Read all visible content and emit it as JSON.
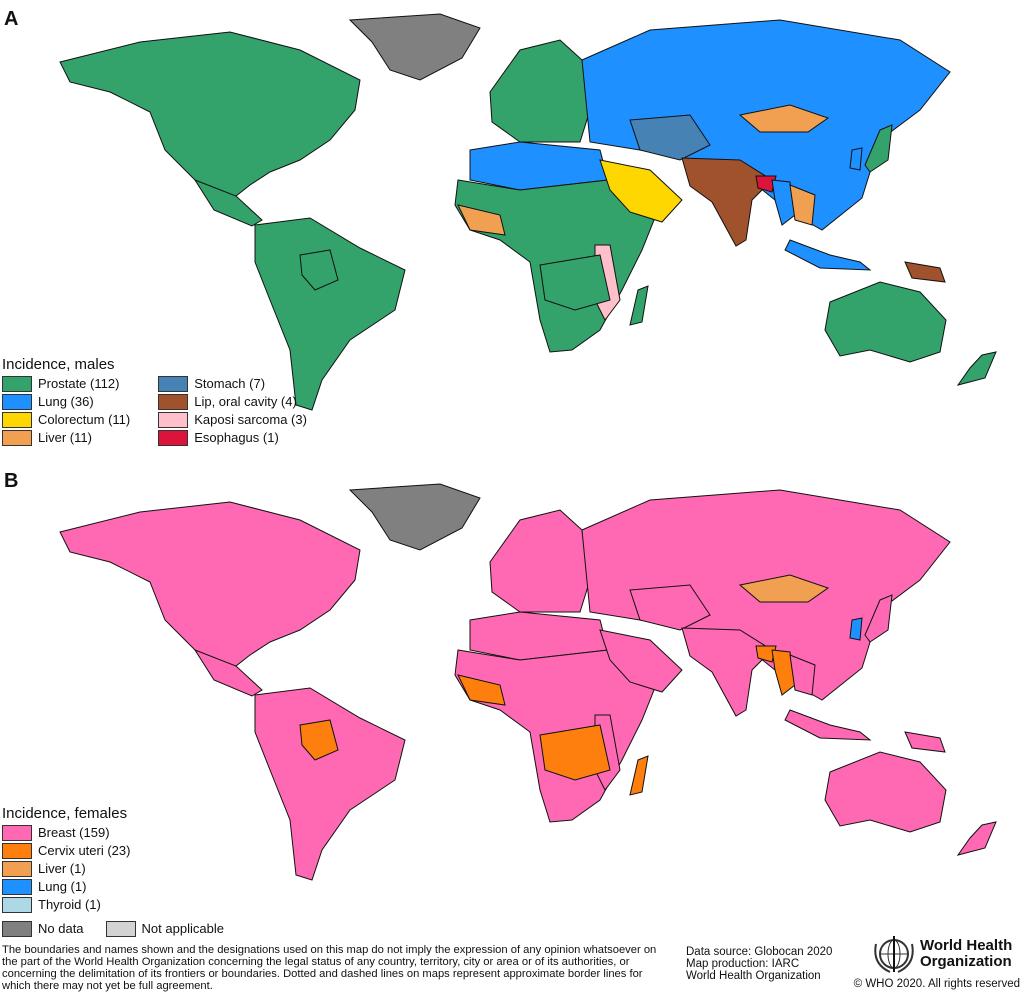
{
  "panels": [
    {
      "label": "A",
      "legend_title": "Incidence, males",
      "legend": [
        {
          "key": "prostate",
          "label": "Prostate (112)",
          "color": "#33a36b"
        },
        {
          "key": "lung",
          "label": "Lung (36)",
          "color": "#1e90ff"
        },
        {
          "key": "colorectum",
          "label": "Colorectum (11)",
          "color": "#ffd700"
        },
        {
          "key": "liver",
          "label": "Liver (11)",
          "color": "#f0a050"
        },
        {
          "key": "stomach",
          "label": "Stomach (7)",
          "color": "#4682b4"
        },
        {
          "key": "lip",
          "label": "Lip, oral cavity (4)",
          "color": "#a0522d"
        },
        {
          "key": "kaposi",
          "label": "Kaposi sarcoma (3)",
          "color": "#ffc0cb"
        },
        {
          "key": "esophagus",
          "label": "Esophagus (1)",
          "color": "#dc143c"
        }
      ],
      "regions": {
        "north_america": "prostate",
        "central_america": "prostate",
        "south_america": "prostate",
        "greenland": "nodata",
        "europe": "prostate",
        "russia_asia": "lung",
        "north_africa": "lung",
        "africa": "prostate",
        "east_africa": "kaposi",
        "arabia": "colorectum",
        "central_asia": "stomach",
        "india": "lip",
        "bangladesh": "esophagus",
        "mongolia": "liver",
        "se_asia": "liver",
        "indonesia": "lung",
        "papua": "lip",
        "australia": "prostate",
        "japan": "prostate",
        "new_zealand": "prostate",
        "madagascar": "prostate",
        "west_africa": "liver",
        "korea": "lung",
        "bolivia": "prostate",
        "myanmar": "lung",
        "southern_africa": "prostate"
      }
    },
    {
      "label": "B",
      "legend_title": "Incidence, females",
      "legend": [
        {
          "key": "breast",
          "label": "Breast (159)",
          "color": "#ff69b4"
        },
        {
          "key": "cervix",
          "label": "Cervix uteri (23)",
          "color": "#ff7f0e"
        },
        {
          "key": "liver",
          "label": "Liver (1)",
          "color": "#f0a050"
        },
        {
          "key": "lung",
          "label": "Lung (1)",
          "color": "#1e90ff"
        },
        {
          "key": "thyroid",
          "label": "Thyroid (1)",
          "color": "#add8e6"
        }
      ],
      "regions": {
        "north_america": "breast",
        "central_america": "breast",
        "south_america": "breast",
        "greenland": "nodata",
        "europe": "breast",
        "russia_asia": "breast",
        "north_africa": "breast",
        "africa": "breast",
        "east_africa": "breast",
        "arabia": "breast",
        "central_asia": "breast",
        "india": "breast",
        "bangladesh": "cervix",
        "mongolia": "liver",
        "se_asia": "breast",
        "indonesia": "breast",
        "papua": "breast",
        "australia": "breast",
        "japan": "breast",
        "new_zealand": "breast",
        "madagascar": "cervix",
        "west_africa": "cervix",
        "korea": "lung",
        "bolivia": "cervix",
        "myanmar": "cervix",
        "southern_africa": "cervix"
      }
    }
  ],
  "status_legend": [
    {
      "key": "nodata",
      "label": "No data",
      "color": "#808080"
    },
    {
      "key": "na",
      "label": "Not applicable",
      "color": "#d3d3d3"
    }
  ],
  "disclaimer": "The boundaries and names shown and the designations used on this map do not imply the expression of any opinion whatsoever on the part of the World Health Organization concerning the legal status of any country, territory, city or area or of its authorities, or concerning the delimitation of its frontiers or boundaries. Dotted and dashed lines on maps represent approximate border lines for which there may not yet be full agreement.",
  "source": [
    "Data source: Globocan 2020",
    "Map production: IARC",
    "World Health Organization"
  ],
  "logo": {
    "name_line1": "World Health",
    "name_line2": "Organization",
    "copyright": "© WHO 2020. All rights reserved"
  }
}
